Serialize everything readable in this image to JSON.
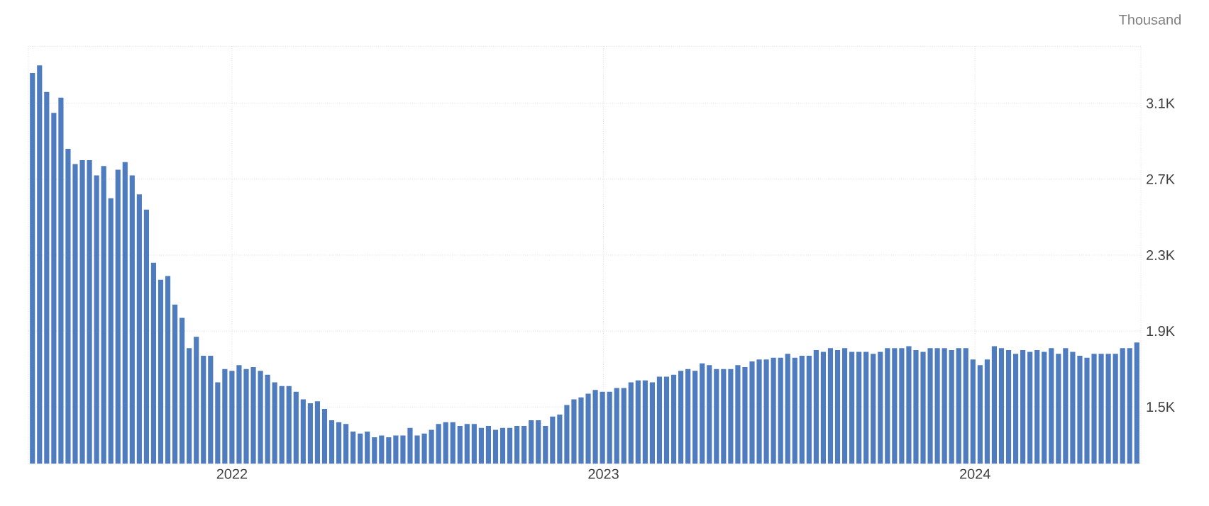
{
  "chart_data": {
    "type": "bar",
    "ylabel": "Thousand",
    "color": "#4f7cbf",
    "grid": true,
    "x": [
      "2021-06-19",
      "2021-06-26",
      "2021-07-03",
      "2021-07-10",
      "2021-07-17",
      "2021-07-24",
      "2021-07-31",
      "2021-08-07",
      "2021-08-14",
      "2021-08-21",
      "2021-08-28",
      "2021-09-04",
      "2021-09-11",
      "2021-09-18",
      "2021-09-25",
      "2021-10-02",
      "2021-10-09",
      "2021-10-16",
      "2021-10-23",
      "2021-10-30",
      "2021-11-06",
      "2021-11-13",
      "2021-11-20",
      "2021-11-27",
      "2021-12-04",
      "2021-12-11",
      "2021-12-18",
      "2021-12-25",
      "2022-01-01",
      "2022-01-08",
      "2022-01-15",
      "2022-01-22",
      "2022-01-29",
      "2022-02-05",
      "2022-02-12",
      "2022-02-19",
      "2022-02-26",
      "2022-03-05",
      "2022-03-12",
      "2022-03-19",
      "2022-03-26",
      "2022-04-02",
      "2022-04-09",
      "2022-04-16",
      "2022-04-23",
      "2022-04-30",
      "2022-05-07",
      "2022-05-14",
      "2022-05-21",
      "2022-05-28",
      "2022-06-04",
      "2022-06-11",
      "2022-06-18",
      "2022-06-25",
      "2022-07-02",
      "2022-07-09",
      "2022-07-16",
      "2022-07-23",
      "2022-07-30",
      "2022-08-06",
      "2022-08-13",
      "2022-08-20",
      "2022-08-27",
      "2022-09-03",
      "2022-09-10",
      "2022-09-17",
      "2022-09-24",
      "2022-10-01",
      "2022-10-08",
      "2022-10-15",
      "2022-10-22",
      "2022-10-29",
      "2022-11-05",
      "2022-11-12",
      "2022-11-19",
      "2022-11-26",
      "2022-12-03",
      "2022-12-10",
      "2022-12-17",
      "2022-12-24",
      "2022-12-31",
      "2023-01-07",
      "2023-01-14",
      "2023-01-21",
      "2023-01-28",
      "2023-02-04",
      "2023-02-11",
      "2023-02-18",
      "2023-02-25",
      "2023-03-04",
      "2023-03-11",
      "2023-03-18",
      "2023-03-25",
      "2023-04-01",
      "2023-04-08",
      "2023-04-15",
      "2023-04-22",
      "2023-04-29",
      "2023-05-06",
      "2023-05-13",
      "2023-05-20",
      "2023-05-27",
      "2023-06-03",
      "2023-06-10",
      "2023-06-17",
      "2023-06-24",
      "2023-07-01",
      "2023-07-08",
      "2023-07-15",
      "2023-07-22",
      "2023-07-29",
      "2023-08-05",
      "2023-08-12",
      "2023-08-19",
      "2023-08-26",
      "2023-09-02",
      "2023-09-09",
      "2023-09-16",
      "2023-09-23",
      "2023-09-30",
      "2023-10-07",
      "2023-10-14",
      "2023-10-21",
      "2023-10-28",
      "2023-11-04",
      "2023-11-11",
      "2023-11-18",
      "2023-11-25",
      "2023-12-02",
      "2023-12-09",
      "2023-12-16",
      "2023-12-23",
      "2023-12-30",
      "2024-01-06",
      "2024-01-13",
      "2024-01-20",
      "2024-01-27",
      "2024-02-03",
      "2024-02-10",
      "2024-02-17",
      "2024-02-24",
      "2024-03-02",
      "2024-03-09",
      "2024-03-16",
      "2024-03-23",
      "2024-03-30",
      "2024-04-06",
      "2024-04-13",
      "2024-04-20",
      "2024-04-27",
      "2024-05-04",
      "2024-05-11",
      "2024-05-18",
      "2024-05-25",
      "2024-06-01",
      "2024-06-08"
    ],
    "values": [
      3260,
      3300,
      3160,
      3050,
      3130,
      2860,
      2780,
      2800,
      2800,
      2720,
      2770,
      2600,
      2750,
      2790,
      2720,
      2620,
      2540,
      2260,
      2170,
      2190,
      2040,
      1970,
      1810,
      1870,
      1770,
      1770,
      1630,
      1700,
      1690,
      1720,
      1700,
      1710,
      1690,
      1670,
      1630,
      1610,
      1610,
      1580,
      1540,
      1520,
      1530,
      1490,
      1430,
      1420,
      1410,
      1370,
      1360,
      1370,
      1340,
      1350,
      1340,
      1350,
      1350,
      1390,
      1350,
      1360,
      1380,
      1410,
      1420,
      1420,
      1400,
      1410,
      1410,
      1390,
      1400,
      1380,
      1390,
      1390,
      1400,
      1400,
      1430,
      1430,
      1400,
      1450,
      1460,
      1510,
      1540,
      1550,
      1570,
      1590,
      1580,
      1580,
      1600,
      1600,
      1630,
      1640,
      1640,
      1630,
      1660,
      1660,
      1670,
      1690,
      1700,
      1690,
      1730,
      1720,
      1700,
      1700,
      1700,
      1720,
      1710,
      1740,
      1750,
      1750,
      1760,
      1760,
      1780,
      1760,
      1770,
      1770,
      1800,
      1790,
      1810,
      1800,
      1810,
      1790,
      1790,
      1790,
      1780,
      1790,
      1810,
      1810,
      1810,
      1820,
      1800,
      1790,
      1810,
      1810,
      1810,
      1800,
      1810,
      1810,
      1750,
      1720,
      1750,
      1820,
      1810,
      1800,
      1780,
      1800,
      1790,
      1800,
      1790,
      1810,
      1780,
      1810,
      1790,
      1770,
      1760,
      1780,
      1780,
      1780,
      1780,
      1810,
      1810,
      1840
    ],
    "xlim": [
      "2021-06-15",
      "2024-06-12"
    ],
    "ylim": [
      1200,
      3400
    ],
    "xticks": [
      {
        "value": "2022-01-01",
        "label": "2022"
      },
      {
        "value": "2023-01-01",
        "label": "2023"
      },
      {
        "value": "2024-01-01",
        "label": "2024"
      }
    ],
    "yticks": [
      {
        "value": 1500,
        "label": "1.5K"
      },
      {
        "value": 1900,
        "label": "1.9K"
      },
      {
        "value": 2300,
        "label": "2.3K"
      },
      {
        "value": 2700,
        "label": "2.7K"
      },
      {
        "value": 3100,
        "label": "3.1K"
      }
    ]
  }
}
